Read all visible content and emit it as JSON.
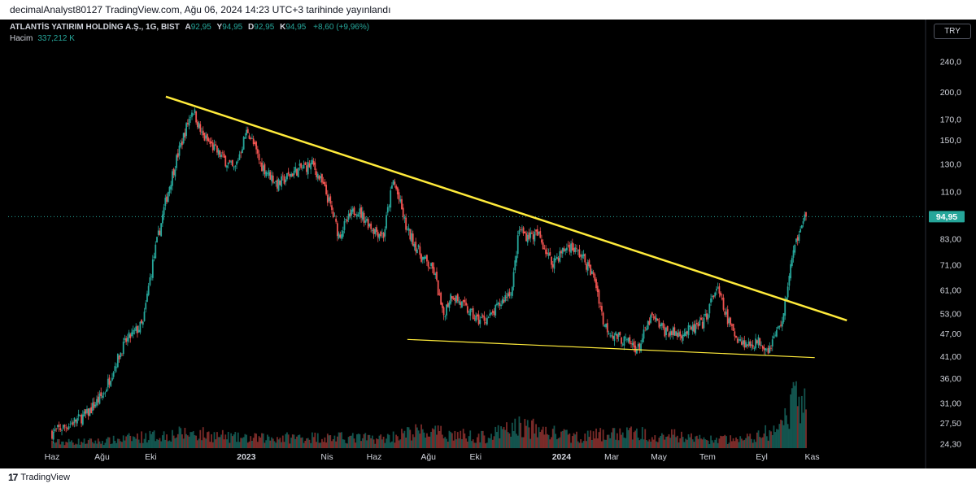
{
  "header": {
    "publish_line": "decimalAnalyst80127 TradingView.com, Ağu 06, 2024 14:23 UTC+3 tarihinde yayınlandı"
  },
  "legend": {
    "symbol": "ATLANTİS YATIRIM HOLDİNG A.Ş., 1G, BIST",
    "open_label": "A",
    "open_value": "92,95",
    "high_label": "Y",
    "high_value": "94,95",
    "low_label": "D",
    "low_value": "92,95",
    "close_label": "K",
    "close_value": "94,95",
    "change": "+8,60 (+9,96%)",
    "volume_label": "Hacim",
    "volume_value": "337,212 K"
  },
  "currency_button": "TRY",
  "footer": {
    "logo_text": "TradingView"
  },
  "colors": {
    "up": "#26a69a",
    "down": "#ef5350",
    "trendline": "#ffeb3b",
    "last_price_bg": "#26a69a",
    "background": "#000000"
  },
  "chart_data": {
    "type": "candlestick",
    "scale": "log",
    "ylim": [
      24.3,
      270
    ],
    "price_ticks": [
      "240,0",
      "200,0",
      "170,0",
      "150,0",
      "130,0",
      "110,0",
      "83,00",
      "71,00",
      "61,00",
      "53,00",
      "47,00",
      "41,00",
      "36,00",
      "31,00",
      "27,50",
      "24,30"
    ],
    "last_price": "94,95",
    "x_ticks": [
      {
        "label": "Haz",
        "t": 0.0
      },
      {
        "label": "Ağu",
        "t": 0.0576
      },
      {
        "label": "Eki",
        "t": 0.1137
      },
      {
        "label": "2023",
        "t": 0.2236
      },
      {
        "label": "Nis",
        "t": 0.3165
      },
      {
        "label": "Haz",
        "t": 0.3708
      },
      {
        "label": "Ağu",
        "t": 0.4332
      },
      {
        "label": "Eki",
        "t": 0.4876
      },
      {
        "label": "2024",
        "t": 0.5865
      },
      {
        "label": "Mar",
        "t": 0.6442
      },
      {
        "label": "May",
        "t": 0.6985
      },
      {
        "label": "Tem",
        "t": 0.7546
      },
      {
        "label": "Eyl",
        "t": 0.817
      },
      {
        "label": "Kas",
        "t": 0.8751
      }
    ],
    "anchors": [
      [
        0.0,
        26
      ],
      [
        0.015,
        27
      ],
      [
        0.04,
        29
      ],
      [
        0.06,
        33
      ],
      [
        0.085,
        45
      ],
      [
        0.105,
        50
      ],
      [
        0.125,
        90
      ],
      [
        0.15,
        150
      ],
      [
        0.162,
        182
      ],
      [
        0.172,
        155
      ],
      [
        0.19,
        140
      ],
      [
        0.21,
        125
      ],
      [
        0.225,
        160
      ],
      [
        0.24,
        130
      ],
      [
        0.26,
        115
      ],
      [
        0.28,
        125
      ],
      [
        0.3,
        130
      ],
      [
        0.315,
        110
      ],
      [
        0.33,
        85
      ],
      [
        0.35,
        100
      ],
      [
        0.37,
        88
      ],
      [
        0.382,
        85
      ],
      [
        0.393,
        118
      ],
      [
        0.408,
        88
      ],
      [
        0.425,
        75
      ],
      [
        0.44,
        68
      ],
      [
        0.45,
        52
      ],
      [
        0.46,
        60
      ],
      [
        0.475,
        55
      ],
      [
        0.49,
        51
      ],
      [
        0.505,
        52
      ],
      [
        0.52,
        58
      ],
      [
        0.53,
        62
      ],
      [
        0.538,
        88
      ],
      [
        0.545,
        85
      ],
      [
        0.56,
        85
      ],
      [
        0.575,
        72
      ],
      [
        0.595,
        80
      ],
      [
        0.61,
        75
      ],
      [
        0.625,
        65
      ],
      [
        0.635,
        50
      ],
      [
        0.645,
        47
      ],
      [
        0.66,
        45
      ],
      [
        0.675,
        43
      ],
      [
        0.69,
        52
      ],
      [
        0.705,
        48
      ],
      [
        0.72,
        47
      ],
      [
        0.735,
        48
      ],
      [
        0.75,
        50
      ],
      [
        0.765,
        62
      ],
      [
        0.775,
        53
      ],
      [
        0.785,
        47
      ],
      [
        0.8,
        44
      ],
      [
        0.815,
        45
      ],
      [
        0.825,
        43
      ],
      [
        0.835,
        48
      ],
      [
        0.842,
        52
      ],
      [
        0.85,
        70
      ],
      [
        0.857,
        82
      ],
      [
        0.862,
        92
      ],
      [
        0.868,
        94.95
      ]
    ],
    "volume_anchors": [
      [
        0.0,
        0.22
      ],
      [
        0.06,
        0.25
      ],
      [
        0.1,
        0.4
      ],
      [
        0.16,
        0.55
      ],
      [
        0.22,
        0.35
      ],
      [
        0.3,
        0.4
      ],
      [
        0.38,
        0.35
      ],
      [
        0.42,
        0.6
      ],
      [
        0.5,
        0.4
      ],
      [
        0.538,
        0.8
      ],
      [
        0.6,
        0.4
      ],
      [
        0.66,
        0.55
      ],
      [
        0.7,
        0.5
      ],
      [
        0.76,
        0.3
      ],
      [
        0.8,
        0.35
      ],
      [
        0.84,
        0.7
      ],
      [
        0.86,
        2.0
      ],
      [
        0.868,
        1.4
      ]
    ],
    "trendlines": [
      {
        "from": [
          0.131,
          195
        ],
        "to": [
          0.915,
          51
        ]
      },
      {
        "from": [
          0.409,
          45.5
        ],
        "to": [
          0.878,
          40.8
        ]
      }
    ]
  }
}
